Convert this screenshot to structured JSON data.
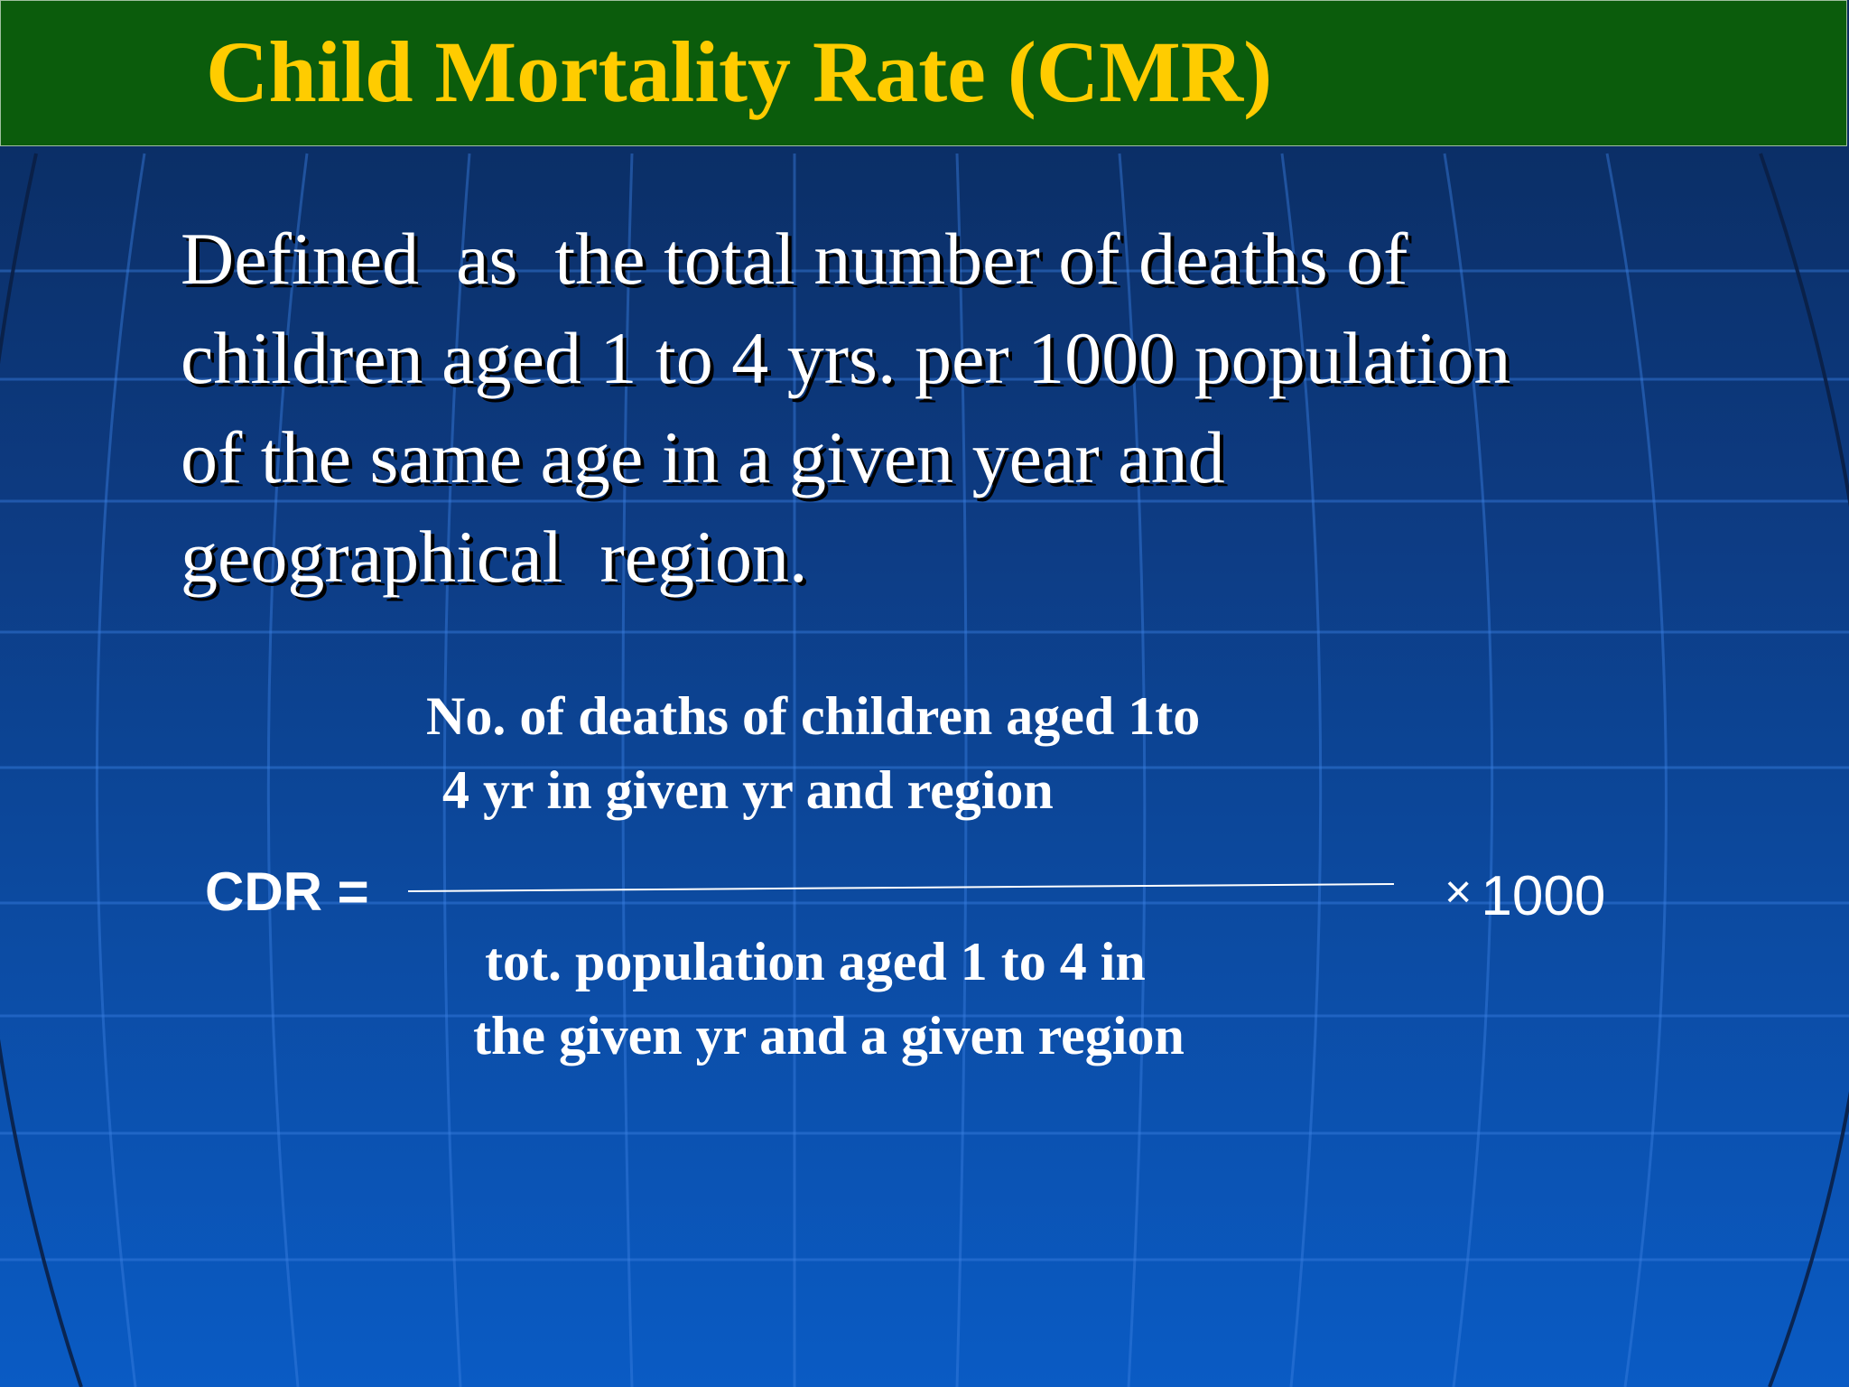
{
  "slide": {
    "title": "Child Mortality Rate (CMR)",
    "definition_lines": [
      "Defined  as  the total number of deaths of",
      "children aged 1 to 4 yrs. per 1000 population",
      "of the same age in a given year and",
      "geographical  region."
    ],
    "formula": {
      "lhs": "CDR =",
      "numerator_lines": [
        "No. of deaths of children aged 1to",
        "4 yr in given yr and region"
      ],
      "denominator_lines": [
        "tot. population aged 1 to 4 in",
        "the given yr and a given region"
      ],
      "times_symbol": "×",
      "multiplier": "1000"
    }
  },
  "colors": {
    "title_bar": "#0b5c0c",
    "title_text": "#ffcc00",
    "background_top": "#0a2a5c",
    "background_bottom": "#0a5bc4",
    "body_text": "#ffffff"
  }
}
